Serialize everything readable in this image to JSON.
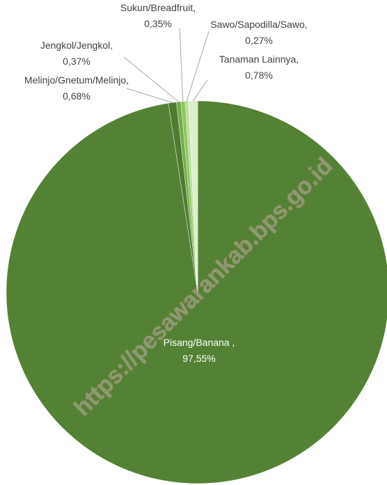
{
  "chart_data": {
    "type": "pie",
    "categories": [
      "Pisang/Banana ,",
      "Melinjo/Gnetum/Melinjo,",
      "Jengkol/Jengkol,",
      "Sukun/Breadfruit,",
      "Sawo/Sapodilla/Sawo,",
      "Tanaman Lainnya,"
    ],
    "values": [
      97.55,
      0.68,
      0.37,
      0.35,
      0.27,
      0.78
    ],
    "value_labels": [
      "97,55%",
      "0,68%",
      "0,37%",
      "0,35%",
      "0,27%",
      "0,78%"
    ],
    "colors": [
      "#548235",
      "#4f7b2f",
      "#70ad47",
      "#8fc45f",
      "#b8dd96",
      "#dcefc9"
    ],
    "watermark": "https://pesawarankab.bps.go.id"
  }
}
